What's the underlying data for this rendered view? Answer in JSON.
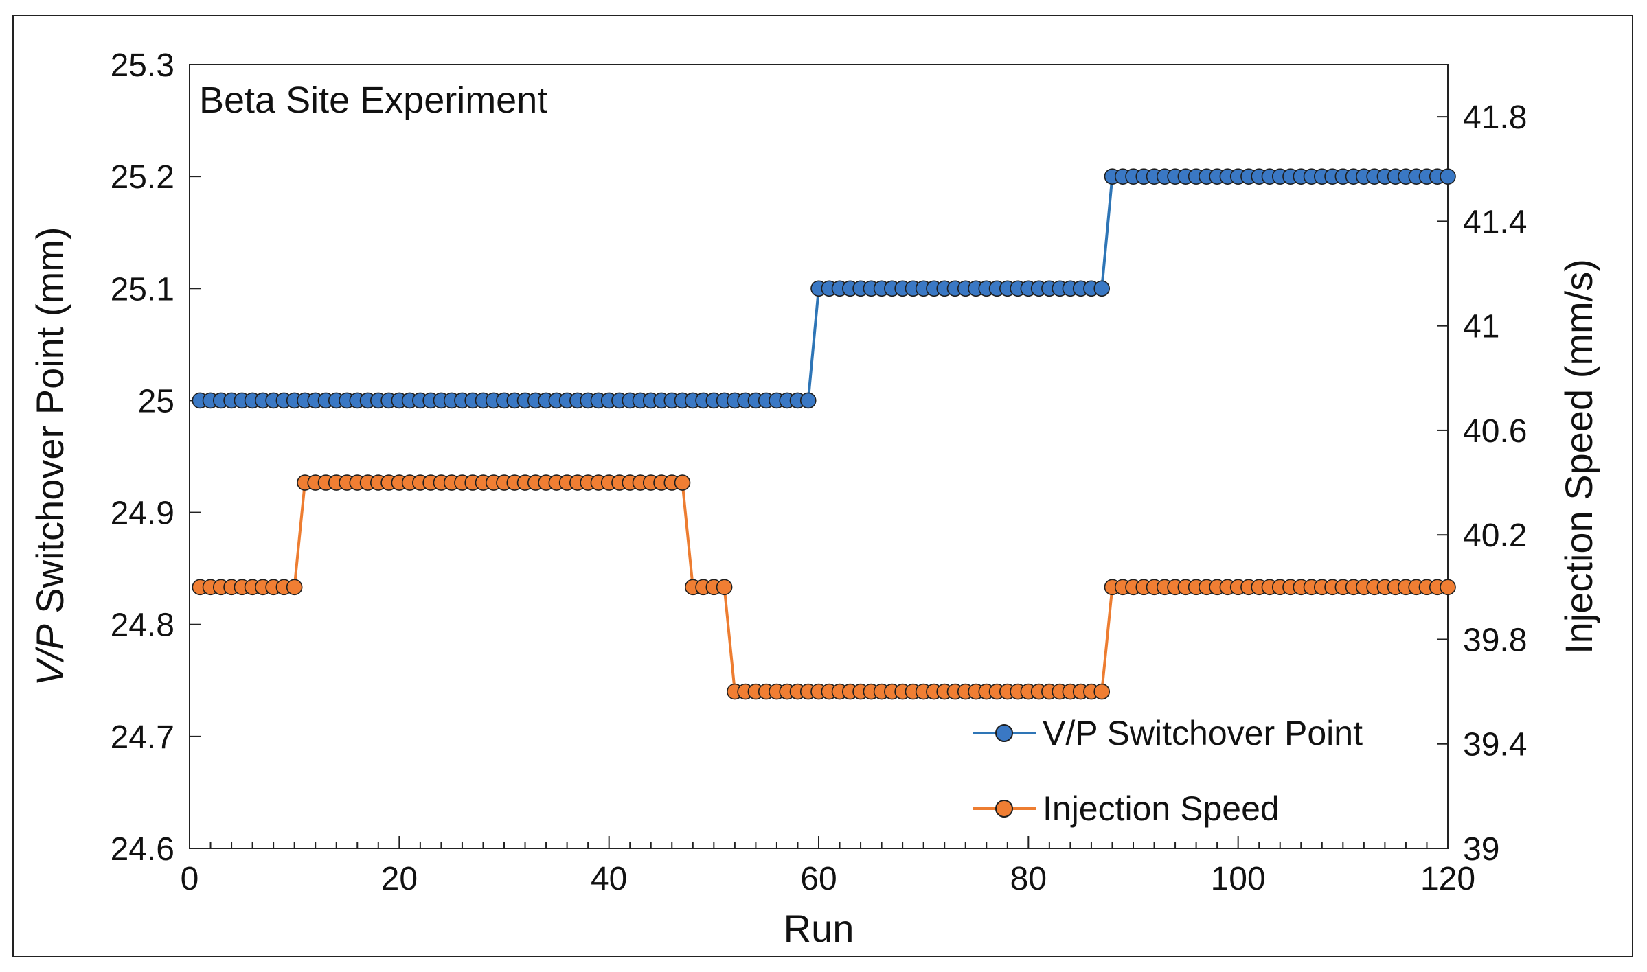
{
  "chart_data": {
    "type": "line",
    "title": "Beta Site Experiment",
    "xlabel": "Run",
    "ylabel_left": {
      "italic": "V/P",
      "rest": " Switchover Point (mm)"
    },
    "ylabel_right": "Injection Speed (mm/s)",
    "xlim": [
      0,
      120
    ],
    "ylim_left": [
      24.6,
      25.3
    ],
    "ylim_right": [
      39,
      42
    ],
    "x_ticks": [
      "0",
      "20",
      "40",
      "60",
      "80",
      "100",
      "120"
    ],
    "y_ticks_left": [
      "24.6",
      "24.7",
      "24.8",
      "24.9",
      "25",
      "25.1",
      "25.2",
      "25.3"
    ],
    "y_ticks_right": [
      "39",
      "39.4",
      "39.8",
      "40.2",
      "40.6",
      "41",
      "41.4",
      "41.8"
    ],
    "legend_position": "bottom-right",
    "series": [
      {
        "name": "V/P Switchover Point",
        "axis": "left",
        "color": "#2E75B6",
        "marker_fill": "#3A78C4",
        "segments": [
          {
            "from_run": 1,
            "to_run": 59,
            "value": 25.0
          },
          {
            "from_run": 60,
            "to_run": 87,
            "value": 25.1
          },
          {
            "from_run": 88,
            "to_run": 120,
            "value": 25.2
          }
        ]
      },
      {
        "name": "Injection Speed",
        "axis": "right",
        "color": "#ED7D31",
        "marker_fill": "#F07E33",
        "segments": [
          {
            "from_run": 1,
            "to_run": 10,
            "value": 40.0
          },
          {
            "from_run": 11,
            "to_run": 47,
            "value": 40.4
          },
          {
            "from_run": 48,
            "to_run": 51,
            "value": 40.0
          },
          {
            "from_run": 52,
            "to_run": 87,
            "value": 39.6
          },
          {
            "from_run": 88,
            "to_run": 120,
            "value": 40.0
          }
        ]
      }
    ]
  }
}
